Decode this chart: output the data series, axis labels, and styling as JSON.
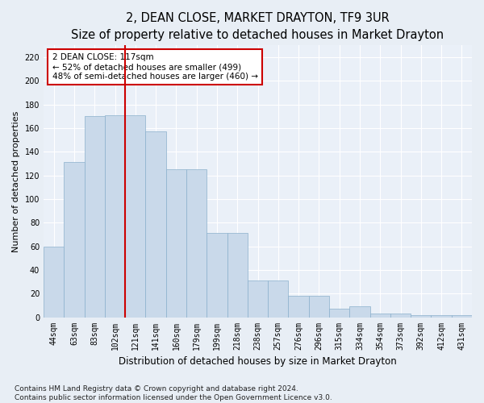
{
  "title": "2, DEAN CLOSE, MARKET DRAYTON, TF9 3UR",
  "subtitle": "Size of property relative to detached houses in Market Drayton",
  "xlabel": "Distribution of detached houses by size in Market Drayton",
  "ylabel": "Number of detached properties",
  "categories": [
    "44sqm",
    "63sqm",
    "83sqm",
    "102sqm",
    "121sqm",
    "141sqm",
    "160sqm",
    "179sqm",
    "199sqm",
    "218sqm",
    "238sqm",
    "257sqm",
    "276sqm",
    "296sqm",
    "315sqm",
    "334sqm",
    "354sqm",
    "373sqm",
    "392sqm",
    "412sqm",
    "431sqm"
  ],
  "values": [
    60,
    131,
    170,
    171,
    171,
    157,
    125,
    125,
    71,
    71,
    31,
    31,
    18,
    18,
    7,
    9,
    3,
    3,
    2,
    2,
    2
  ],
  "bar_color": "#c9d9ea",
  "bar_edge_color": "#8ab0cc",
  "vline_x_index": 4,
  "vline_color": "#cc0000",
  "annotation_text": "2 DEAN CLOSE: 117sqm\n← 52% of detached houses are smaller (499)\n48% of semi-detached houses are larger (460) →",
  "annotation_box_facecolor": "#ffffff",
  "annotation_box_edgecolor": "#cc0000",
  "ylim": [
    0,
    230
  ],
  "yticks": [
    0,
    20,
    40,
    60,
    80,
    100,
    120,
    140,
    160,
    180,
    200,
    220
  ],
  "footnote": "Contains HM Land Registry data © Crown copyright and database right 2024.\nContains public sector information licensed under the Open Government Licence v3.0.",
  "fig_facecolor": "#e8eef5",
  "axes_facecolor": "#eaf0f8",
  "grid_color": "#ffffff",
  "title_fontsize": 10.5,
  "xlabel_fontsize": 8.5,
  "ylabel_fontsize": 8,
  "tick_fontsize": 7,
  "annot_fontsize": 7.5,
  "footnote_fontsize": 6.5
}
